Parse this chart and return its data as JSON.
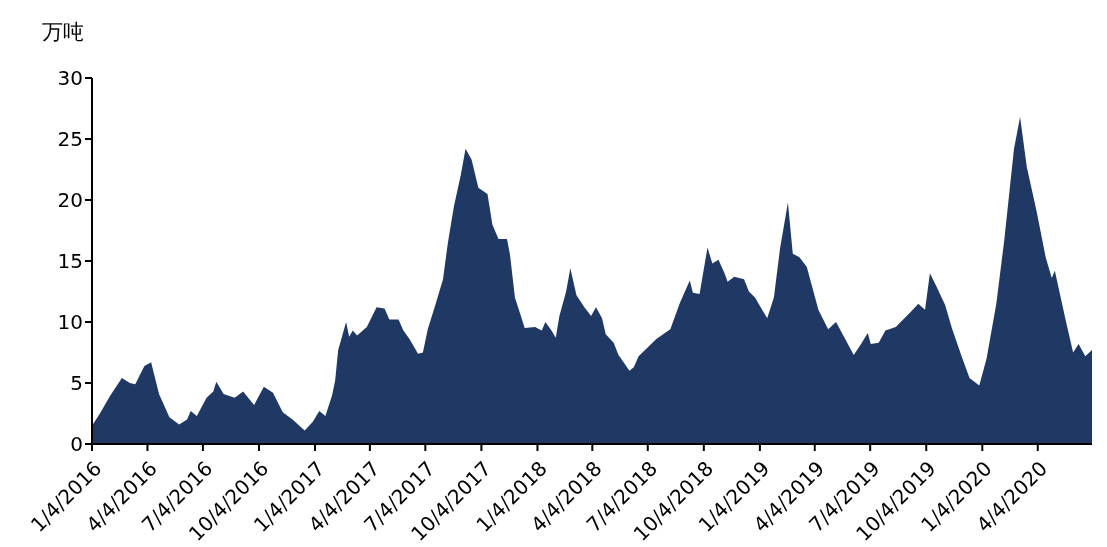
{
  "chart_data": {
    "type": "area",
    "ylabel": "万吨",
    "color": "#203864",
    "grid": false,
    "legend": false,
    "x": [
      "2016-01-04",
      "2016-01-17",
      "2016-02-02",
      "2016-02-22",
      "2016-03-06",
      "2016-03-15",
      "2016-03-30",
      "2016-04-10",
      "2016-04-23",
      "2016-05-10",
      "2016-05-26",
      "2016-06-08",
      "2016-06-14",
      "2016-06-24",
      "2016-07-10",
      "2016-07-21",
      "2016-07-26",
      "2016-08-07",
      "2016-08-25",
      "2016-09-08",
      "2016-09-26",
      "2016-10-12",
      "2016-10-27",
      "2016-11-12",
      "2016-11-28",
      "2016-12-18",
      "2016-12-31",
      "2017-01-11",
      "2017-01-21",
      "2017-02-01",
      "2017-02-06",
      "2017-02-11",
      "2017-02-24",
      "2017-03-01",
      "2017-03-07",
      "2017-03-14",
      "2017-03-30",
      "2017-04-15",
      "2017-04-28",
      "2017-05-06",
      "2017-05-21",
      "2017-05-29",
      "2017-06-08",
      "2017-06-22",
      "2017-06-30",
      "2017-07-08",
      "2017-07-21",
      "2017-08-02",
      "2017-08-10",
      "2017-08-20",
      "2017-08-31",
      "2017-09-08",
      "2017-09-18",
      "2017-09-29",
      "2017-10-14",
      "2017-10-22",
      "2017-11-01",
      "2017-11-15",
      "2017-11-20",
      "2017-11-28",
      "2017-12-09",
      "2017-12-14",
      "2017-12-31",
      "2018-01-11",
      "2018-01-17",
      "2018-01-27",
      "2018-02-03",
      "2018-02-09",
      "2018-02-20",
      "2018-02-27",
      "2018-03-09",
      "2018-03-22",
      "2018-04-02",
      "2018-04-10",
      "2018-04-20",
      "2018-04-26",
      "2018-05-09",
      "2018-05-17",
      "2018-06-04",
      "2018-06-11",
      "2018-06-19",
      "2018-07-18",
      "2018-08-10",
      "2018-08-26",
      "2018-09-11",
      "2018-09-16",
      "2018-09-27",
      "2018-10-10",
      "2018-10-18",
      "2018-10-28",
      "2018-11-07",
      "2018-11-12",
      "2018-11-23",
      "2018-12-09",
      "2018-12-17",
      "2018-12-27",
      "2019-01-16",
      "2019-01-27",
      "2019-02-06",
      "2019-02-19",
      "2019-02-27",
      "2019-03-10",
      "2019-03-22",
      "2019-04-10",
      "2019-04-26",
      "2019-05-09",
      "2019-05-22",
      "2019-06-07",
      "2019-06-19",
      "2019-06-30",
      "2019-07-05",
      "2019-07-18",
      "2019-07-29",
      "2019-08-15",
      "2019-09-08",
      "2019-09-21",
      "2019-10-02",
      "2019-10-10",
      "2019-10-20",
      "2019-11-04",
      "2019-11-15",
      "2019-12-01",
      "2019-12-14",
      "2019-12-30",
      "2020-01-11",
      "2020-01-27",
      "2020-02-09",
      "2020-02-25",
      "2020-03-06",
      "2020-03-17",
      "2020-04-02",
      "2020-04-17",
      "2020-04-27",
      "2020-05-02",
      "2020-05-20",
      "2020-06-01",
      "2020-06-10",
      "2020-06-21",
      "2020-07-02"
    ],
    "values": [
      1.5,
      2.5,
      3.9,
      5.4,
      5.0,
      4.9,
      6.4,
      6.7,
      4.1,
      2.2,
      1.6,
      2.0,
      2.7,
      2.3,
      3.8,
      4.3,
      5.1,
      4.1,
      3.8,
      4.3,
      3.2,
      4.7,
      4.2,
      2.6,
      2.0,
      1.1,
      1.8,
      2.7,
      2.3,
      4.0,
      5.2,
      7.7,
      10.0,
      8.8,
      9.3,
      8.9,
      9.6,
      11.2,
      11.1,
      10.2,
      10.2,
      9.3,
      8.6,
      7.4,
      7.5,
      9.4,
      11.5,
      13.5,
      16.5,
      19.5,
      22.0,
      24.2,
      23.3,
      21.0,
      20.5,
      18.0,
      16.8,
      16.8,
      15.5,
      12.0,
      10.3,
      9.5,
      9.6,
      9.3,
      10.0,
      9.3,
      8.7,
      10.5,
      12.5,
      14.4,
      12.2,
      11.2,
      10.5,
      11.2,
      10.3,
      9.0,
      8.3,
      7.3,
      6.0,
      6.3,
      7.2,
      8.6,
      9.4,
      11.6,
      13.4,
      12.4,
      12.3,
      16.1,
      14.8,
      15.1,
      14.0,
      13.3,
      13.7,
      13.5,
      12.5,
      12.0,
      10.3,
      12.0,
      16.0,
      19.8,
      15.6,
      15.3,
      14.5,
      11.0,
      9.4,
      10.0,
      8.8,
      7.3,
      8.2,
      9.1,
      8.2,
      8.3,
      9.3,
      9.6,
      10.8,
      11.5,
      11.0,
      14.0,
      13.0,
      11.4,
      9.5,
      7.2,
      5.4,
      4.8,
      7.0,
      11.5,
      16.7,
      24.2,
      26.8,
      22.7,
      19.1,
      15.3,
      13.6,
      14.2,
      10.1,
      7.5,
      8.2,
      7.2,
      7.7
    ],
    "xlim": [
      "2016-01-04",
      "2020-07-02"
    ],
    "xticks": [
      {
        "value": "2016-01-04",
        "label": "1/4/2016"
      },
      {
        "value": "2016-04-04",
        "label": "4/4/2016"
      },
      {
        "value": "2016-07-04",
        "label": "7/4/2016"
      },
      {
        "value": "2016-10-04",
        "label": "10/4/2016"
      },
      {
        "value": "2017-01-04",
        "label": "1/4/2017"
      },
      {
        "value": "2017-04-04",
        "label": "4/4/2017"
      },
      {
        "value": "2017-07-04",
        "label": "7/4/2017"
      },
      {
        "value": "2017-10-04",
        "label": "10/4/2017"
      },
      {
        "value": "2018-01-04",
        "label": "1/4/2018"
      },
      {
        "value": "2018-04-04",
        "label": "4/4/2018"
      },
      {
        "value": "2018-07-04",
        "label": "7/4/2018"
      },
      {
        "value": "2018-10-04",
        "label": "10/4/2018"
      },
      {
        "value": "2019-01-04",
        "label": "1/4/2019"
      },
      {
        "value": "2019-04-04",
        "label": "4/4/2019"
      },
      {
        "value": "2019-07-04",
        "label": "7/4/2019"
      },
      {
        "value": "2019-10-04",
        "label": "10/4/2019"
      },
      {
        "value": "2020-01-04",
        "label": "1/4/2020"
      },
      {
        "value": "2020-04-04",
        "label": "4/4/2020"
      }
    ],
    "ylim": [
      0,
      30
    ],
    "yticks": [
      0,
      5,
      10,
      15,
      20,
      25,
      30
    ]
  }
}
